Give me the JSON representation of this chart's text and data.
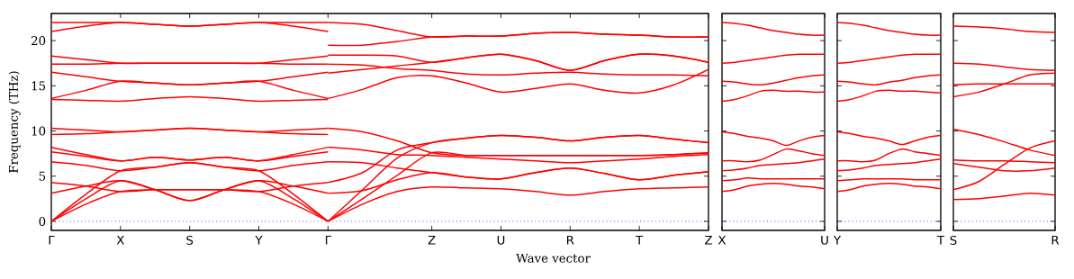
{
  "chart_data": [
    {
      "type": "line",
      "xlabel": "Wave vector",
      "ylabel": "Frequency (THz)",
      "line_style": "solid",
      "categories": [
        "Γ",
        null,
        "X",
        null,
        "S",
        null,
        "Y",
        null,
        "Γ",
        null,
        null,
        "Z",
        null,
        "U",
        null,
        "R",
        null,
        "T",
        null,
        "Z"
      ],
      "ylim": [
        -1,
        23
      ],
      "yticks": [
        0,
        5,
        10,
        15,
        20
      ],
      "ref_lines": [
        {
          "axis": "y",
          "value": 0,
          "color": "#0000ff",
          "line_style": "dotted"
        }
      ],
      "series": [
        {
          "color": "#ff0000",
          "values": [
            22.0,
            22.0,
            22.0,
            21.8,
            21.6,
            21.8,
            22.0,
            21.6,
            21.0,
            null,
            null,
            null,
            null,
            null,
            null,
            null,
            null,
            null,
            null,
            null
          ]
        },
        {
          "color": "#ff0000",
          "values": [
            21.0,
            21.6,
            22.0,
            21.8,
            21.6,
            21.8,
            22.0,
            22.0,
            22.0,
            null,
            null,
            null,
            null,
            null,
            null,
            null,
            null,
            null,
            null,
            null
          ]
        },
        {
          "color": "#ff0000",
          "values": [
            18.3,
            17.9,
            17.5,
            17.5,
            17.5,
            17.5,
            17.5,
            17.4,
            17.4,
            null,
            null,
            null,
            null,
            null,
            null,
            null,
            null,
            null,
            null,
            null
          ]
        },
        {
          "color": "#ff0000",
          "values": [
            17.4,
            17.4,
            17.5,
            17.5,
            17.5,
            17.5,
            17.5,
            17.9,
            18.3,
            null,
            null,
            null,
            null,
            null,
            null,
            null,
            null,
            null,
            null,
            null
          ]
        },
        {
          "color": "#ff0000",
          "values": [
            16.5,
            16.0,
            15.5,
            15.3,
            15.1,
            15.3,
            15.5,
            14.5,
            13.6,
            null,
            null,
            null,
            null,
            null,
            null,
            null,
            null,
            null,
            null,
            null
          ]
        },
        {
          "color": "#ff0000",
          "values": [
            13.6,
            14.5,
            15.5,
            15.3,
            15.1,
            15.3,
            15.5,
            16.0,
            16.5,
            null,
            null,
            null,
            null,
            null,
            null,
            null,
            null,
            null,
            null,
            null
          ]
        },
        {
          "color": "#ff0000",
          "values": [
            13.5,
            13.4,
            13.3,
            13.6,
            13.8,
            13.6,
            13.3,
            13.4,
            13.5,
            null,
            null,
            null,
            null,
            null,
            null,
            null,
            null,
            null,
            null,
            null
          ]
        },
        {
          "color": "#ff0000",
          "values": [
            10.3,
            10.1,
            9.9,
            10.1,
            10.3,
            10.1,
            9.9,
            9.7,
            9.6,
            null,
            null,
            null,
            null,
            null,
            null,
            null,
            null,
            null,
            null,
            null
          ]
        },
        {
          "color": "#ff0000",
          "values": [
            9.6,
            9.7,
            9.9,
            10.1,
            10.3,
            10.1,
            9.9,
            10.1,
            10.3,
            null,
            null,
            null,
            null,
            null,
            null,
            null,
            null,
            null,
            null,
            null
          ]
        },
        {
          "color": "#ff0000",
          "values": [
            8.2,
            7.4,
            6.7,
            7.1,
            6.8,
            7.1,
            6.7,
            7.2,
            7.7,
            null,
            null,
            null,
            null,
            null,
            null,
            null,
            null,
            null,
            null,
            null
          ]
        },
        {
          "color": "#ff0000",
          "values": [
            7.7,
            7.2,
            6.7,
            7.1,
            6.8,
            7.1,
            6.7,
            7.4,
            8.2,
            null,
            null,
            null,
            null,
            null,
            null,
            null,
            null,
            null,
            null,
            null
          ]
        },
        {
          "color": "#ff0000",
          "values": [
            6.6,
            6.2,
            5.6,
            6.0,
            6.5,
            6.0,
            5.6,
            3.0,
            0,
            null,
            null,
            null,
            null,
            null,
            null,
            null,
            null,
            null,
            null,
            null
          ]
        },
        {
          "color": "#ff0000",
          "values": [
            0,
            3.0,
            5.6,
            6.0,
            6.5,
            6.0,
            5.6,
            6.2,
            6.6,
            null,
            null,
            null,
            null,
            null,
            null,
            null,
            null,
            null,
            null,
            null
          ]
        },
        {
          "color": "#ff0000",
          "values": [
            4.3,
            3.9,
            3.3,
            3.5,
            3.5,
            3.5,
            3.3,
            1.9,
            0,
            null,
            null,
            null,
            null,
            null,
            null,
            null,
            null,
            null,
            null,
            null
          ]
        },
        {
          "color": "#ff0000",
          "values": [
            0,
            1.9,
            3.3,
            3.5,
            3.5,
            3.5,
            3.3,
            3.9,
            4.3,
            null,
            null,
            null,
            null,
            null,
            null,
            null,
            null,
            null,
            null,
            null
          ]
        },
        {
          "color": "#ff0000",
          "values": [
            3.1,
            3.9,
            4.5,
            3.5,
            2.3,
            3.5,
            4.5,
            2.5,
            0,
            null,
            null,
            null,
            null,
            null,
            null,
            null,
            null,
            null,
            null,
            null
          ]
        },
        {
          "color": "#ff0000",
          "values": [
            0,
            2.5,
            4.5,
            3.5,
            2.3,
            3.5,
            4.5,
            3.9,
            3.1,
            null,
            null,
            null,
            null,
            null,
            null,
            null,
            null,
            null,
            null,
            null
          ]
        },
        {
          "color": "#ff0000",
          "values": [
            null,
            null,
            null,
            null,
            null,
            null,
            null,
            null,
            22.0,
            21.8,
            21.1,
            20.4,
            20.5,
            20.5,
            20.8,
            20.9,
            20.7,
            20.6,
            20.4,
            20.4
          ]
        },
        {
          "color": "#ff0000",
          "values": [
            null,
            null,
            null,
            null,
            null,
            null,
            null,
            null,
            19.5,
            19.5,
            19.9,
            20.4,
            20.5,
            20.5,
            20.8,
            20.9,
            20.7,
            20.6,
            20.4,
            20.4
          ]
        },
        {
          "color": "#ff0000",
          "values": [
            null,
            null,
            null,
            null,
            null,
            null,
            null,
            null,
            18.4,
            18.4,
            18.3,
            17.6,
            18.1,
            18.5,
            17.8,
            16.7,
            17.8,
            18.5,
            18.3,
            17.6
          ]
        },
        {
          "color": "#ff0000",
          "values": [
            null,
            null,
            null,
            null,
            null,
            null,
            null,
            null,
            16.4,
            16.8,
            17.2,
            17.6,
            18.1,
            18.5,
            17.8,
            16.7,
            17.8,
            18.5,
            18.3,
            17.6
          ]
        },
        {
          "color": "#ff0000",
          "values": [
            null,
            null,
            null,
            null,
            null,
            null,
            null,
            null,
            17.4,
            17.3,
            16.9,
            16.7,
            16.3,
            16.2,
            16.4,
            16.5,
            16.3,
            16.2,
            16.2,
            16.1
          ]
        },
        {
          "color": "#ff0000",
          "values": [
            null,
            null,
            null,
            null,
            null,
            null,
            null,
            null,
            13.6,
            14.6,
            15.9,
            16.1,
            15.3,
            14.3,
            14.7,
            15.2,
            14.5,
            14.2,
            15.1,
            16.8
          ]
        },
        {
          "color": "#ff0000",
          "values": [
            null,
            null,
            null,
            null,
            null,
            null,
            null,
            null,
            4.3,
            5.4,
            7.9,
            8.7,
            9.2,
            9.5,
            9.3,
            8.9,
            9.3,
            9.5,
            9.1,
            8.7
          ]
        },
        {
          "color": "#ff0000",
          "values": [
            null,
            null,
            null,
            null,
            null,
            null,
            null,
            null,
            0,
            3.5,
            7.0,
            8.7,
            9.2,
            9.5,
            9.3,
            8.9,
            9.3,
            9.5,
            9.1,
            8.7
          ]
        },
        {
          "color": "#ff0000",
          "values": [
            null,
            null,
            null,
            null,
            null,
            null,
            null,
            null,
            10.3,
            9.9,
            8.9,
            7.6,
            7.3,
            7.3,
            7.3,
            7.3,
            7.3,
            7.3,
            7.4,
            7.6
          ]
        },
        {
          "color": "#ff0000",
          "values": [
            null,
            null,
            null,
            null,
            null,
            null,
            null,
            null,
            0,
            2.5,
            5.1,
            7.6,
            7.3,
            7.3,
            7.3,
            7.3,
            7.3,
            7.3,
            7.4,
            7.6
          ]
        },
        {
          "color": "#ff0000",
          "values": [
            null,
            null,
            null,
            null,
            null,
            null,
            null,
            null,
            8.2,
            7.9,
            7.4,
            7.3,
            7.1,
            6.9,
            6.7,
            6.5,
            6.7,
            6.9,
            7.2,
            7.4
          ]
        },
        {
          "color": "#ff0000",
          "values": [
            null,
            null,
            null,
            null,
            null,
            null,
            null,
            null,
            6.6,
            6.5,
            5.9,
            5.4,
            4.9,
            4.7,
            5.4,
            5.9,
            5.3,
            4.6,
            5.1,
            5.5
          ]
        },
        {
          "color": "#ff0000",
          "values": [
            null,
            null,
            null,
            null,
            null,
            null,
            null,
            null,
            3.1,
            3.4,
            4.6,
            5.4,
            4.9,
            4.7,
            5.4,
            5.9,
            5.3,
            4.6,
            5.1,
            5.5
          ]
        },
        {
          "color": "#ff0000",
          "values": [
            null,
            null,
            null,
            null,
            null,
            null,
            null,
            null,
            0,
            1.9,
            3.3,
            3.8,
            3.7,
            3.6,
            3.3,
            2.9,
            3.3,
            3.6,
            3.7,
            3.8
          ]
        }
      ]
    },
    {
      "type": "line",
      "line_style": "solid",
      "tick_labels": "x",
      "categories": [
        "X",
        null,
        null,
        null,
        null,
        null,
        null,
        null,
        "U"
      ],
      "ylim": [
        -1,
        23
      ],
      "yticks": [
        0,
        5,
        10,
        15,
        20
      ],
      "ref_lines": [
        {
          "axis": "y",
          "value": 0,
          "color": "#0000ff",
          "line_style": "dotted"
        }
      ],
      "series": [
        {
          "color": "#ff0000",
          "values": [
            22.0,
            21.9,
            21.7,
            21.4,
            21.1,
            20.9,
            20.7,
            20.6,
            20.6
          ]
        },
        {
          "color": "#ff0000",
          "values": [
            17.5,
            17.6,
            17.8,
            18.0,
            18.2,
            18.4,
            18.5,
            18.5,
            18.5
          ]
        },
        {
          "color": "#ff0000",
          "values": [
            15.5,
            15.4,
            15.2,
            15.1,
            15.3,
            15.6,
            15.9,
            16.1,
            16.2
          ]
        },
        {
          "color": "#ff0000",
          "values": [
            13.3,
            13.5,
            13.9,
            14.4,
            14.5,
            14.4,
            14.4,
            14.3,
            14.3
          ]
        },
        {
          "color": "#ff0000",
          "values": [
            9.9,
            9.7,
            9.4,
            9.2,
            8.9,
            8.4,
            8.9,
            9.3,
            9.5
          ]
        },
        {
          "color": "#ff0000",
          "values": [
            6.7,
            6.7,
            6.6,
            6.8,
            7.4,
            8.0,
            7.8,
            7.5,
            7.3
          ]
        },
        {
          "color": "#ff0000",
          "values": [
            5.6,
            5.7,
            5.9,
            6.2,
            6.3,
            6.4,
            6.5,
            6.7,
            6.9
          ]
        },
        {
          "color": "#ff0000",
          "values": [
            4.5,
            4.6,
            4.8,
            4.7,
            4.7,
            4.7,
            4.7,
            4.7,
            4.7
          ]
        },
        {
          "color": "#ff0000",
          "values": [
            3.3,
            3.5,
            3.9,
            4.1,
            4.2,
            4.1,
            3.9,
            3.8,
            3.6
          ]
        }
      ]
    },
    {
      "type": "line",
      "line_style": "solid",
      "tick_labels": "x",
      "categories": [
        "Y",
        null,
        null,
        null,
        null,
        null,
        null,
        null,
        "T"
      ],
      "ylim": [
        -1,
        23
      ],
      "yticks": [
        0,
        5,
        10,
        15,
        20
      ],
      "ref_lines": [
        {
          "axis": "y",
          "value": 0,
          "color": "#0000ff",
          "line_style": "dotted"
        }
      ],
      "series": [
        {
          "color": "#ff0000",
          "values": [
            22.0,
            21.9,
            21.7,
            21.4,
            21.1,
            20.9,
            20.7,
            20.6,
            20.6
          ]
        },
        {
          "color": "#ff0000",
          "values": [
            17.5,
            17.6,
            17.8,
            18.0,
            18.2,
            18.4,
            18.5,
            18.5,
            18.5
          ]
        },
        {
          "color": "#ff0000",
          "values": [
            15.5,
            15.4,
            15.2,
            15.1,
            15.4,
            15.6,
            15.9,
            16.1,
            16.2
          ]
        },
        {
          "color": "#ff0000",
          "values": [
            13.3,
            13.5,
            13.9,
            14.4,
            14.5,
            14.4,
            14.4,
            14.3,
            14.2
          ]
        },
        {
          "color": "#ff0000",
          "values": [
            9.9,
            9.7,
            9.4,
            9.2,
            8.9,
            8.5,
            8.9,
            9.3,
            9.5
          ]
        },
        {
          "color": "#ff0000",
          "values": [
            6.7,
            6.7,
            6.6,
            6.8,
            7.5,
            8.0,
            7.7,
            7.5,
            7.3
          ]
        },
        {
          "color": "#ff0000",
          "values": [
            5.6,
            5.7,
            5.9,
            6.2,
            6.3,
            6.4,
            6.5,
            6.7,
            6.9
          ]
        },
        {
          "color": "#ff0000",
          "values": [
            4.5,
            4.6,
            4.7,
            4.7,
            4.7,
            4.7,
            4.6,
            4.6,
            4.6
          ]
        },
        {
          "color": "#ff0000",
          "values": [
            3.3,
            3.5,
            3.9,
            4.1,
            4.2,
            4.1,
            3.9,
            3.8,
            3.6
          ]
        }
      ]
    },
    {
      "type": "line",
      "line_style": "solid",
      "tick_labels": "x",
      "categories": [
        "S",
        null,
        null,
        null,
        "R"
      ],
      "ylim": [
        -1,
        23
      ],
      "yticks": [
        0,
        5,
        10,
        15,
        20
      ],
      "ref_lines": [
        {
          "axis": "y",
          "value": 0,
          "color": "#0000ff",
          "line_style": "dotted"
        }
      ],
      "series": [
        {
          "color": "#ff0000",
          "values": [
            21.6,
            21.5,
            21.3,
            21.0,
            20.9
          ]
        },
        {
          "color": "#ff0000",
          "values": [
            17.5,
            17.4,
            17.1,
            16.8,
            16.7
          ]
        },
        {
          "color": "#ff0000",
          "values": [
            15.1,
            15.2,
            15.2,
            15.2,
            15.2
          ]
        },
        {
          "color": "#ff0000",
          "values": [
            13.8,
            14.3,
            15.2,
            16.2,
            16.4
          ]
        },
        {
          "color": "#ff0000",
          "values": [
            10.2,
            9.6,
            8.8,
            7.9,
            7.3
          ]
        },
        {
          "color": "#ff0000",
          "values": [
            6.8,
            6.7,
            6.7,
            6.6,
            6.5
          ]
        },
        {
          "color": "#ff0000",
          "values": [
            6.4,
            6.0,
            5.6,
            5.6,
            5.9
          ]
        },
        {
          "color": "#ff0000",
          "values": [
            3.5,
            4.4,
            6.3,
            8.1,
            8.9
          ]
        },
        {
          "color": "#ff0000",
          "values": [
            2.4,
            2.5,
            2.8,
            3.1,
            2.9
          ]
        }
      ]
    }
  ]
}
